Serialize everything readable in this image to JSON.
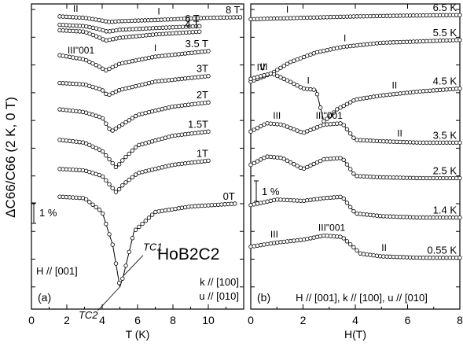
{
  "figure": {
    "ylabel": "ΔC66/C66 (2 K, 0 T)",
    "scale_bar_label": "1 %",
    "material": "HoB2C2"
  },
  "chart_data": [
    {
      "type": "line",
      "panel_label": "(a)",
      "xlabel": "T (K)",
      "xlim": [
        0,
        12
      ],
      "xticks": [
        0,
        2,
        4,
        6,
        8,
        10
      ],
      "annotations": [
        "H // [001]",
        "k // [100]",
        "u // [010]"
      ],
      "phase_labels": [
        {
          "text": "II",
          "x": 2.5,
          "curve": "8 T"
        },
        {
          "text": "I",
          "x": 7.2,
          "curve": "8 T"
        },
        {
          "text": "I",
          "x": 7.0,
          "curve": "3.5 T"
        },
        {
          "text": "III\"001",
          "x": 2.8,
          "curve": "3.5 T"
        },
        {
          "text": "III",
          "x": 2.4,
          "curve": "2 T"
        },
        {
          "text": "I",
          "x": 7.5,
          "curve": "1.5 T"
        },
        {
          "text": "III",
          "x": 2.2,
          "curve": "0 T"
        },
        {
          "text": "I",
          "x": 9.6,
          "curve": "0 T"
        },
        {
          "text": "IV",
          "x": 5.5,
          "curve": "0 T"
        }
      ],
      "transition_labels": [
        "TC1",
        "TC2"
      ],
      "series": [
        {
          "name": "8 T",
          "x": [
            1.6,
            3,
            4,
            4.4,
            5,
            7,
            10,
            11.8
          ],
          "values": [
            6.75,
            6.7,
            6.6,
            6.55,
            6.58,
            6.62,
            6.7,
            6.72
          ]
        },
        {
          "name": "6 T",
          "x": [
            1.6,
            3,
            3.8,
            4.3,
            5,
            7,
            9.5
          ],
          "values": [
            6.45,
            6.4,
            6.3,
            6.2,
            6.27,
            6.33,
            6.4
          ]
        },
        {
          "name": "4 T",
          "x": [
            1.6,
            3,
            3.8,
            4.2,
            5,
            7,
            9.5
          ],
          "values": [
            6.25,
            6.2,
            6.0,
            5.88,
            5.98,
            6.1,
            6.2
          ]
        },
        {
          "name": "3.5 T",
          "x": [
            1.6,
            3,
            3.8,
            4.2,
            5,
            7,
            10
          ],
          "values": [
            5.35,
            5.2,
            4.95,
            4.8,
            5.05,
            5.3,
            5.5
          ]
        },
        {
          "name": "3T",
          "x": [
            1.6,
            3,
            4,
            4.3,
            5,
            7,
            10
          ],
          "values": [
            4.35,
            4.3,
            4.1,
            3.9,
            4.1,
            4.4,
            4.6
          ]
        },
        {
          "name": "2T",
          "x": [
            1.6,
            3,
            4,
            4.5,
            5,
            6,
            8,
            10
          ],
          "values": [
            3.4,
            3.3,
            3.1,
            2.6,
            2.8,
            3.2,
            3.5,
            3.65
          ]
        },
        {
          "name": "1.5T",
          "x": [
            1.6,
            3,
            4,
            4.8,
            5.2,
            6,
            8,
            10
          ],
          "values": [
            2.3,
            2.2,
            1.9,
            1.3,
            1.6,
            2.1,
            2.45,
            2.6
          ]
        },
        {
          "name": "1T",
          "x": [
            1.6,
            3,
            4,
            4.8,
            5.2,
            6,
            8,
            10
          ],
          "values": [
            1.25,
            1.2,
            1.0,
            0.4,
            0.7,
            1.1,
            1.4,
            1.55
          ]
        },
        {
          "name": "0T",
          "x": [
            1.6,
            3,
            4,
            4.6,
            5.0,
            5.2,
            5.8,
            7,
            9,
            11.5
          ],
          "values": [
            0.25,
            0.2,
            -0.3,
            -1.5,
            -3.0,
            -2.6,
            -1.0,
            -0.3,
            -0.1,
            0.0
          ]
        }
      ]
    },
    {
      "type": "line",
      "panel_label": "(b)",
      "xlabel": "H(T)",
      "xlim": [
        0,
        8
      ],
      "xticks": [
        0,
        2,
        4,
        6,
        8
      ],
      "annotations": [
        "H // [001], k // [100], u // [010]"
      ],
      "phase_labels": [
        {
          "text": "I",
          "x": 1.4,
          "curve": "6.5 K"
        },
        {
          "text": "I",
          "x": 3.6,
          "curve": "5.5 K"
        },
        {
          "text": "III",
          "x": 0.5,
          "curve": "4.5 K"
        },
        {
          "text": "IV",
          "x": 0.4,
          "curve": "4.5 K"
        },
        {
          "text": "I",
          "x": 2.2,
          "curve": "4.5 K"
        },
        {
          "text": "II",
          "x": 5.5,
          "curve": "4.5 K"
        },
        {
          "text": "III",
          "x": 1.0,
          "curve": "3.5 K"
        },
        {
          "text": "III\"001",
          "x": 3.0,
          "curve": "3.5 K"
        },
        {
          "text": "II",
          "x": 5.7,
          "curve": "3.5 K"
        },
        {
          "text": "III",
          "x": 0.9,
          "curve": "0.55 K"
        },
        {
          "text": "III\"001",
          "x": 3.1,
          "curve": "0.55 K"
        },
        {
          "text": "II",
          "x": 5.1,
          "curve": "0.55 K"
        }
      ],
      "series": [
        {
          "name": "6.5 K",
          "x": [
            0,
            2,
            4,
            6,
            8
          ],
          "values": [
            6.65,
            6.7,
            6.75,
            6.78,
            6.8
          ]
        },
        {
          "name": "5.5 K",
          "x": [
            0,
            0.8,
            1.5,
            2.5,
            3.5,
            5,
            6.5,
            8
          ],
          "values": [
            4.4,
            4.7,
            5.1,
            5.45,
            5.65,
            5.8,
            5.85,
            5.9
          ]
        },
        {
          "name": "4.5 K",
          "x": [
            0,
            0.8,
            1.5,
            2.0,
            2.5,
            2.8,
            3.3,
            4,
            5,
            6.5,
            8
          ],
          "values": [
            4.5,
            4.7,
            4.4,
            4.15,
            4.1,
            2.95,
            3.4,
            3.75,
            3.9,
            4.05,
            4.15
          ]
        },
        {
          "name": "3.5 K",
          "x": [
            0,
            0.6,
            1.2,
            2.0,
            2.8,
            3.5,
            4.0,
            5,
            6.5,
            8
          ],
          "values": [
            2.6,
            2.9,
            2.85,
            2.55,
            2.85,
            2.9,
            2.3,
            2.25,
            2.2,
            2.2
          ]
        },
        {
          "name": "2.5 K",
          "x": [
            0,
            0.6,
            1.2,
            2.0,
            2.8,
            3.5,
            4.0,
            5,
            6.5,
            8
          ],
          "values": [
            1.4,
            1.7,
            1.65,
            1.25,
            1.6,
            1.65,
            1.0,
            0.95,
            0.92,
            0.92
          ]
        },
        {
          "name": "1.4 K",
          "x": [
            0,
            1.0,
            2.0,
            2.8,
            3.5,
            4.0,
            5,
            6.5,
            8
          ],
          "values": [
            -0.05,
            0.15,
            0.1,
            0.2,
            0.25,
            -0.35,
            -0.45,
            -0.5,
            -0.5
          ]
        },
        {
          "name": "0.55 K",
          "x": [
            0,
            1.0,
            2.0,
            2.8,
            3.5,
            4.2,
            5,
            6.5,
            8
          ],
          "values": [
            -1.55,
            -1.4,
            -1.3,
            -1.15,
            -1.2,
            -1.8,
            -1.9,
            -1.95,
            -1.95
          ]
        }
      ]
    }
  ]
}
